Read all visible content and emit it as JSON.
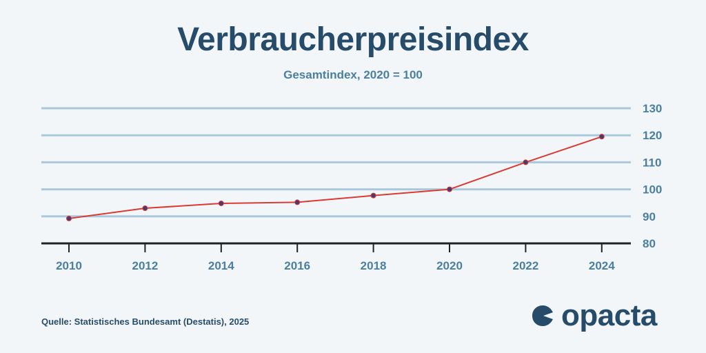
{
  "chart_data": {
    "type": "line",
    "title": "Verbraucherpreisindex",
    "subtitle": "Gesamtindex, 2020 = 100",
    "categories": [
      "2010",
      "2012",
      "2014",
      "2016",
      "2018",
      "2020",
      "2022",
      "2024"
    ],
    "series": [
      {
        "name": "Verbraucherpreisindex",
        "values": [
          89.2,
          93.0,
          94.8,
          95.2,
          97.7,
          100.0,
          110.0,
          119.5
        ]
      }
    ],
    "y_ticks": [
      "80",
      "90",
      "100",
      "110",
      "120",
      "130"
    ],
    "ylim": [
      80,
      130
    ],
    "y_axis_position": "right",
    "grid": true,
    "line_color": "#d93a32",
    "marker_color": "#4a3a6e",
    "grid_color": "#a9c8dc",
    "axis_color": "#222222",
    "tick_label_color": "#4a7fa0"
  },
  "footer": {
    "source": "Quelle: Statistisches Bundesamt (Destatis), 2025",
    "logo_text": "opacta"
  },
  "colors": {
    "title": "#264c6a",
    "background": "#f3f6f9"
  }
}
